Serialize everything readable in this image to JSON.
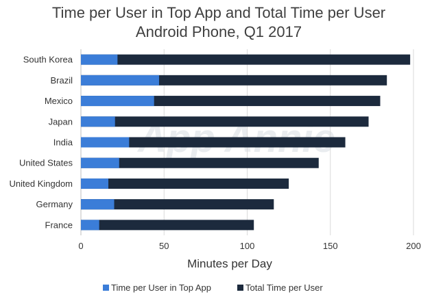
{
  "chart_data": {
    "type": "bar",
    "orientation": "horizontal",
    "stacking": "overlay",
    "title_lines": [
      "Time per User in Top App and Total Time per User",
      "Android Phone, Q1 2017"
    ],
    "watermark": "App Annie",
    "xlabel": "Minutes per Day",
    "ylabel": "",
    "xlim": [
      0,
      200
    ],
    "xticks": [
      0,
      50,
      100,
      150,
      200
    ],
    "grid": true,
    "legend_position": "bottom",
    "categories": [
      "South Korea",
      "Brazil",
      "Mexico",
      "Japan",
      "India",
      "United States",
      "United Kingdom",
      "Germany",
      "France"
    ],
    "series": [
      {
        "name": "Time per User in Top App",
        "color": "#3b7dd8",
        "values": [
          22,
          47,
          44,
          20.5,
          29,
          23,
          16.5,
          20,
          11
        ]
      },
      {
        "name": "Total Time per User",
        "color": "#1c2a3d",
        "values": [
          198,
          184,
          180,
          173,
          159,
          143,
          125,
          116,
          104
        ]
      }
    ]
  }
}
